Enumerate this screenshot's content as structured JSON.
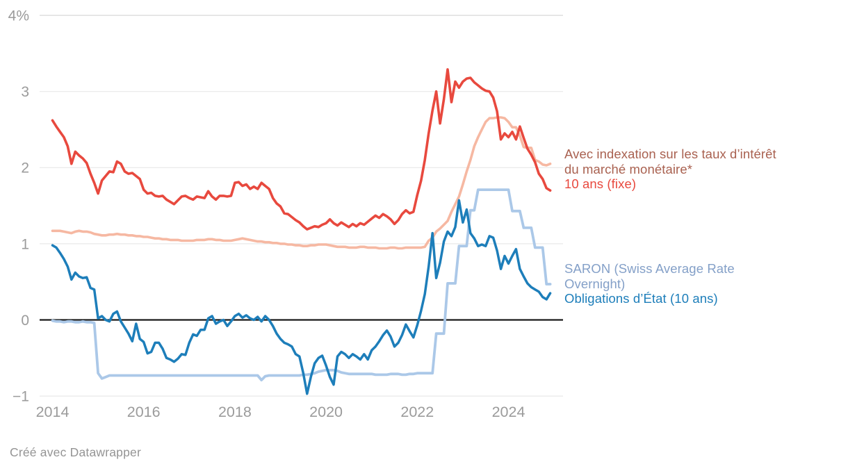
{
  "footer": {
    "credit": "Créé avec Datawrapper"
  },
  "annotations": {
    "indexation_line1": "Avec indexation sur les taux d’intérêt",
    "indexation_line2": "du marché monétaire*",
    "fixe_label": "10 ans (fixe)",
    "saron_line1": "SARON (Swiss Average Rate",
    "saron_line2": "Overnight)",
    "obligations_label": "Obligations d’État (10 ans)"
  },
  "colors": {
    "fixe": "#e8493e",
    "indexation": "#f6b8a2",
    "saron": "#abc8e8",
    "obligations": "#1d7eba",
    "axis_text": "#9b9b9b",
    "gridline": "#e8e8e8",
    "gridline_top": "#d9d9d9",
    "zero_line": "#1a1a1a"
  },
  "chart_data": {
    "type": "line",
    "title": "",
    "xlabel": "",
    "ylabel": "",
    "unit": "%",
    "x_start": 2014.0,
    "x_step": 0.0833333,
    "xlim": [
      2013.72,
      2025.2
    ],
    "ylim": [
      -1,
      4
    ],
    "grid": "horizontal",
    "legend_position": "right-annotations",
    "y_ticks": [
      {
        "v": 4,
        "label": "4%"
      },
      {
        "v": 3,
        "label": "3"
      },
      {
        "v": 2,
        "label": "2"
      },
      {
        "v": 1,
        "label": "1"
      },
      {
        "v": 0,
        "label": "0"
      },
      {
        "v": -1,
        "label": "−1"
      }
    ],
    "x_ticks": [
      {
        "v": 2014,
        "label": "2014"
      },
      {
        "v": 2016,
        "label": "2016"
      },
      {
        "v": 2018,
        "label": "2018"
      },
      {
        "v": 2020,
        "label": "2020"
      },
      {
        "v": 2022,
        "label": "2022"
      },
      {
        "v": 2024,
        "label": "2024"
      }
    ],
    "series": [
      {
        "id": "indexation",
        "name": "Avec indexation sur les taux d’intérêt du marché monétaire*",
        "color": "#f6b8a2",
        "stroke_width": 3.6,
        "values": [
          1.17,
          1.17,
          1.17,
          1.16,
          1.15,
          1.14,
          1.16,
          1.17,
          1.16,
          1.16,
          1.15,
          1.13,
          1.12,
          1.11,
          1.11,
          1.12,
          1.12,
          1.13,
          1.12,
          1.12,
          1.11,
          1.11,
          1.1,
          1.1,
          1.09,
          1.09,
          1.08,
          1.07,
          1.07,
          1.06,
          1.06,
          1.05,
          1.05,
          1.05,
          1.04,
          1.04,
          1.04,
          1.04,
          1.05,
          1.05,
          1.05,
          1.06,
          1.06,
          1.05,
          1.05,
          1.04,
          1.04,
          1.04,
          1.05,
          1.06,
          1.07,
          1.06,
          1.05,
          1.04,
          1.03,
          1.03,
          1.02,
          1.02,
          1.01,
          1.01,
          1.0,
          1.0,
          0.99,
          0.99,
          0.98,
          0.98,
          0.97,
          0.97,
          0.98,
          0.98,
          0.99,
          0.99,
          0.99,
          0.98,
          0.97,
          0.96,
          0.96,
          0.96,
          0.95,
          0.95,
          0.95,
          0.96,
          0.96,
          0.95,
          0.95,
          0.95,
          0.94,
          0.94,
          0.94,
          0.95,
          0.95,
          0.94,
          0.94,
          0.95,
          0.95,
          0.95,
          0.95,
          0.95,
          0.96,
          1.04,
          1.08,
          1.16,
          1.2,
          1.25,
          1.3,
          1.42,
          1.52,
          1.62,
          1.78,
          1.95,
          2.1,
          2.28,
          2.4,
          2.5,
          2.6,
          2.65,
          2.65,
          2.66,
          2.66,
          2.65,
          2.6,
          2.53,
          2.53,
          2.42,
          2.27,
          2.26,
          2.26,
          2.1,
          2.08,
          2.04,
          2.03,
          2.05
        ]
      },
      {
        "id": "saron",
        "name": "SARON (Swiss Average Rate Overnight)",
        "color": "#abc8e8",
        "stroke_width": 3.8,
        "values": [
          -0.01,
          -0.02,
          -0.02,
          -0.03,
          -0.02,
          -0.02,
          -0.03,
          -0.03,
          -0.02,
          -0.03,
          -0.03,
          -0.04,
          -0.7,
          -0.77,
          -0.75,
          -0.73,
          -0.73,
          -0.73,
          -0.73,
          -0.73,
          -0.73,
          -0.73,
          -0.73,
          -0.73,
          -0.73,
          -0.73,
          -0.73,
          -0.73,
          -0.73,
          -0.73,
          -0.73,
          -0.73,
          -0.73,
          -0.73,
          -0.73,
          -0.73,
          -0.73,
          -0.73,
          -0.73,
          -0.73,
          -0.73,
          -0.73,
          -0.73,
          -0.73,
          -0.73,
          -0.73,
          -0.73,
          -0.73,
          -0.73,
          -0.73,
          -0.73,
          -0.73,
          -0.73,
          -0.73,
          -0.73,
          -0.79,
          -0.74,
          -0.73,
          -0.73,
          -0.73,
          -0.73,
          -0.73,
          -0.73,
          -0.73,
          -0.73,
          -0.73,
          -0.72,
          -0.72,
          -0.71,
          -0.7,
          -0.68,
          -0.67,
          -0.66,
          -0.66,
          -0.66,
          -0.67,
          -0.69,
          -0.7,
          -0.71,
          -0.71,
          -0.71,
          -0.71,
          -0.71,
          -0.71,
          -0.71,
          -0.72,
          -0.72,
          -0.72,
          -0.72,
          -0.71,
          -0.71,
          -0.71,
          -0.72,
          -0.72,
          -0.71,
          -0.71,
          -0.7,
          -0.7,
          -0.7,
          -0.7,
          -0.7,
          -0.18,
          -0.18,
          -0.18,
          0.48,
          0.48,
          0.48,
          0.97,
          0.97,
          0.97,
          1.44,
          1.44,
          1.71,
          1.71,
          1.71,
          1.71,
          1.71,
          1.71,
          1.71,
          1.71,
          1.71,
          1.43,
          1.43,
          1.43,
          1.21,
          1.21,
          1.21,
          0.95,
          0.95,
          0.95,
          0.47,
          0.47
        ]
      },
      {
        "id": "obligations",
        "name": "Obligations d’État (10 ans)",
        "color": "#1d7eba",
        "stroke_width": 3.5,
        "values": [
          0.98,
          0.95,
          0.88,
          0.8,
          0.7,
          0.53,
          0.62,
          0.57,
          0.55,
          0.56,
          0.42,
          0.4,
          0.02,
          0.05,
          0.0,
          -0.02,
          0.08,
          0.11,
          -0.02,
          -0.1,
          -0.18,
          -0.28,
          -0.05,
          -0.25,
          -0.29,
          -0.44,
          -0.42,
          -0.3,
          -0.3,
          -0.38,
          -0.5,
          -0.52,
          -0.55,
          -0.51,
          -0.45,
          -0.46,
          -0.3,
          -0.19,
          -0.21,
          -0.13,
          -0.13,
          0.02,
          0.05,
          -0.05,
          -0.02,
          0.0,
          -0.08,
          -0.02,
          0.05,
          0.08,
          0.03,
          0.06,
          0.02,
          0.0,
          0.04,
          -0.02,
          0.05,
          0.0,
          -0.08,
          -0.18,
          -0.25,
          -0.3,
          -0.32,
          -0.35,
          -0.45,
          -0.48,
          -0.7,
          -0.97,
          -0.75,
          -0.57,
          -0.5,
          -0.47,
          -0.6,
          -0.75,
          -0.85,
          -0.48,
          -0.42,
          -0.45,
          -0.5,
          -0.45,
          -0.48,
          -0.52,
          -0.45,
          -0.52,
          -0.4,
          -0.35,
          -0.28,
          -0.2,
          -0.14,
          -0.22,
          -0.35,
          -0.3,
          -0.2,
          -0.06,
          -0.15,
          -0.23,
          -0.07,
          0.12,
          0.34,
          0.7,
          1.14,
          0.55,
          0.75,
          1.03,
          1.16,
          1.1,
          1.22,
          1.57,
          1.28,
          1.45,
          1.14,
          1.07,
          0.97,
          0.99,
          0.97,
          1.1,
          1.08,
          0.91,
          0.67,
          0.84,
          0.74,
          0.84,
          0.93,
          0.67,
          0.57,
          0.48,
          0.43,
          0.4,
          0.37,
          0.3,
          0.27,
          0.35
        ]
      },
      {
        "id": "fixe",
        "name": "10 ans (fixe)",
        "color": "#e8493e",
        "stroke_width": 3.6,
        "values": [
          2.62,
          2.54,
          2.47,
          2.4,
          2.28,
          2.05,
          2.21,
          2.16,
          2.12,
          2.06,
          1.92,
          1.8,
          1.66,
          1.83,
          1.89,
          1.95,
          1.94,
          2.08,
          2.05,
          1.95,
          1.92,
          1.93,
          1.89,
          1.85,
          1.71,
          1.66,
          1.67,
          1.63,
          1.62,
          1.63,
          1.58,
          1.55,
          1.52,
          1.57,
          1.62,
          1.63,
          1.6,
          1.58,
          1.62,
          1.61,
          1.6,
          1.69,
          1.62,
          1.58,
          1.63,
          1.63,
          1.62,
          1.63,
          1.8,
          1.81,
          1.76,
          1.78,
          1.72,
          1.75,
          1.72,
          1.8,
          1.76,
          1.72,
          1.6,
          1.53,
          1.49,
          1.4,
          1.39,
          1.35,
          1.31,
          1.28,
          1.23,
          1.19,
          1.21,
          1.23,
          1.22,
          1.25,
          1.27,
          1.32,
          1.27,
          1.24,
          1.28,
          1.25,
          1.22,
          1.26,
          1.23,
          1.27,
          1.25,
          1.29,
          1.33,
          1.37,
          1.34,
          1.39,
          1.36,
          1.32,
          1.26,
          1.31,
          1.39,
          1.44,
          1.4,
          1.42,
          1.64,
          1.83,
          2.1,
          2.45,
          2.75,
          3.0,
          2.58,
          2.9,
          3.29,
          2.86,
          3.13,
          3.05,
          3.13,
          3.17,
          3.18,
          3.12,
          3.08,
          3.04,
          3.01,
          3.0,
          2.92,
          2.74,
          2.37,
          2.45,
          2.4,
          2.47,
          2.37,
          2.54,
          2.39,
          2.25,
          2.17,
          2.07,
          1.92,
          1.85,
          1.73,
          1.7
        ]
      }
    ]
  }
}
